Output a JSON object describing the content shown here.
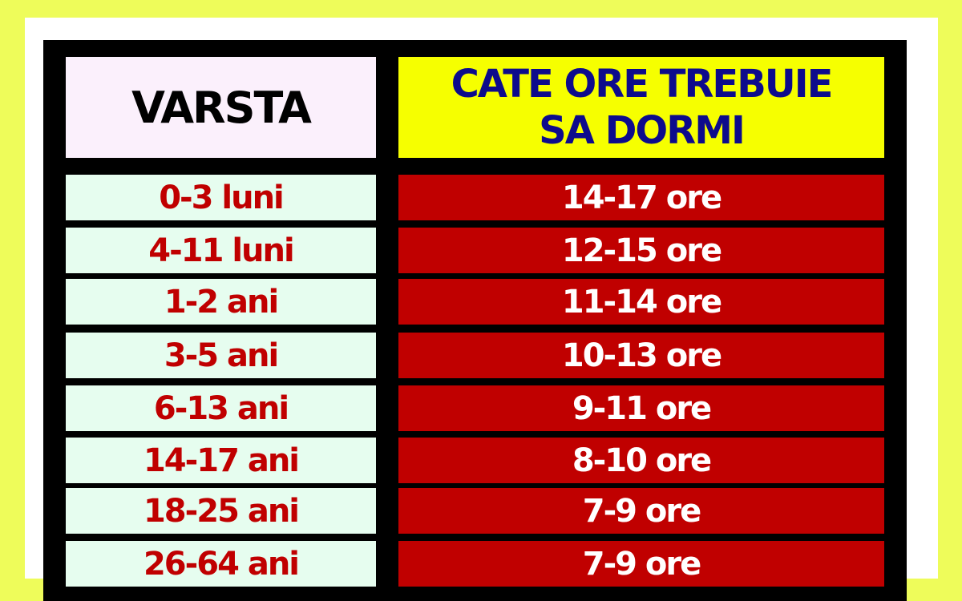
{
  "colors": {
    "background": "#eefc5a",
    "header_left": "#fbf0fc",
    "header_right": "#f6ff00",
    "age_cell": "#e6fdef",
    "hours_cell": "#c00000",
    "age_text": "#c00000",
    "header_right_text": "#0d0b8c"
  },
  "header": {
    "age": "VARSTA",
    "hours": "CATE ORE TREBUIE SA DORMI"
  },
  "rows": [
    {
      "age": "0-3 luni",
      "hours": "14-17 ore"
    },
    {
      "age": "4-11 luni",
      "hours": "12-15 ore"
    },
    {
      "age": "1-2 ani",
      "hours": "11-14 ore"
    },
    {
      "age": "3-5 ani",
      "hours": "10-13 ore"
    },
    {
      "age": "6-13 ani",
      "hours": "9-11 ore"
    },
    {
      "age": "14-17 ani",
      "hours": "8-10 ore"
    },
    {
      "age": "18-25 ani",
      "hours": "7-9 ore"
    },
    {
      "age": "26-64 ani",
      "hours": "7-9 ore"
    }
  ]
}
